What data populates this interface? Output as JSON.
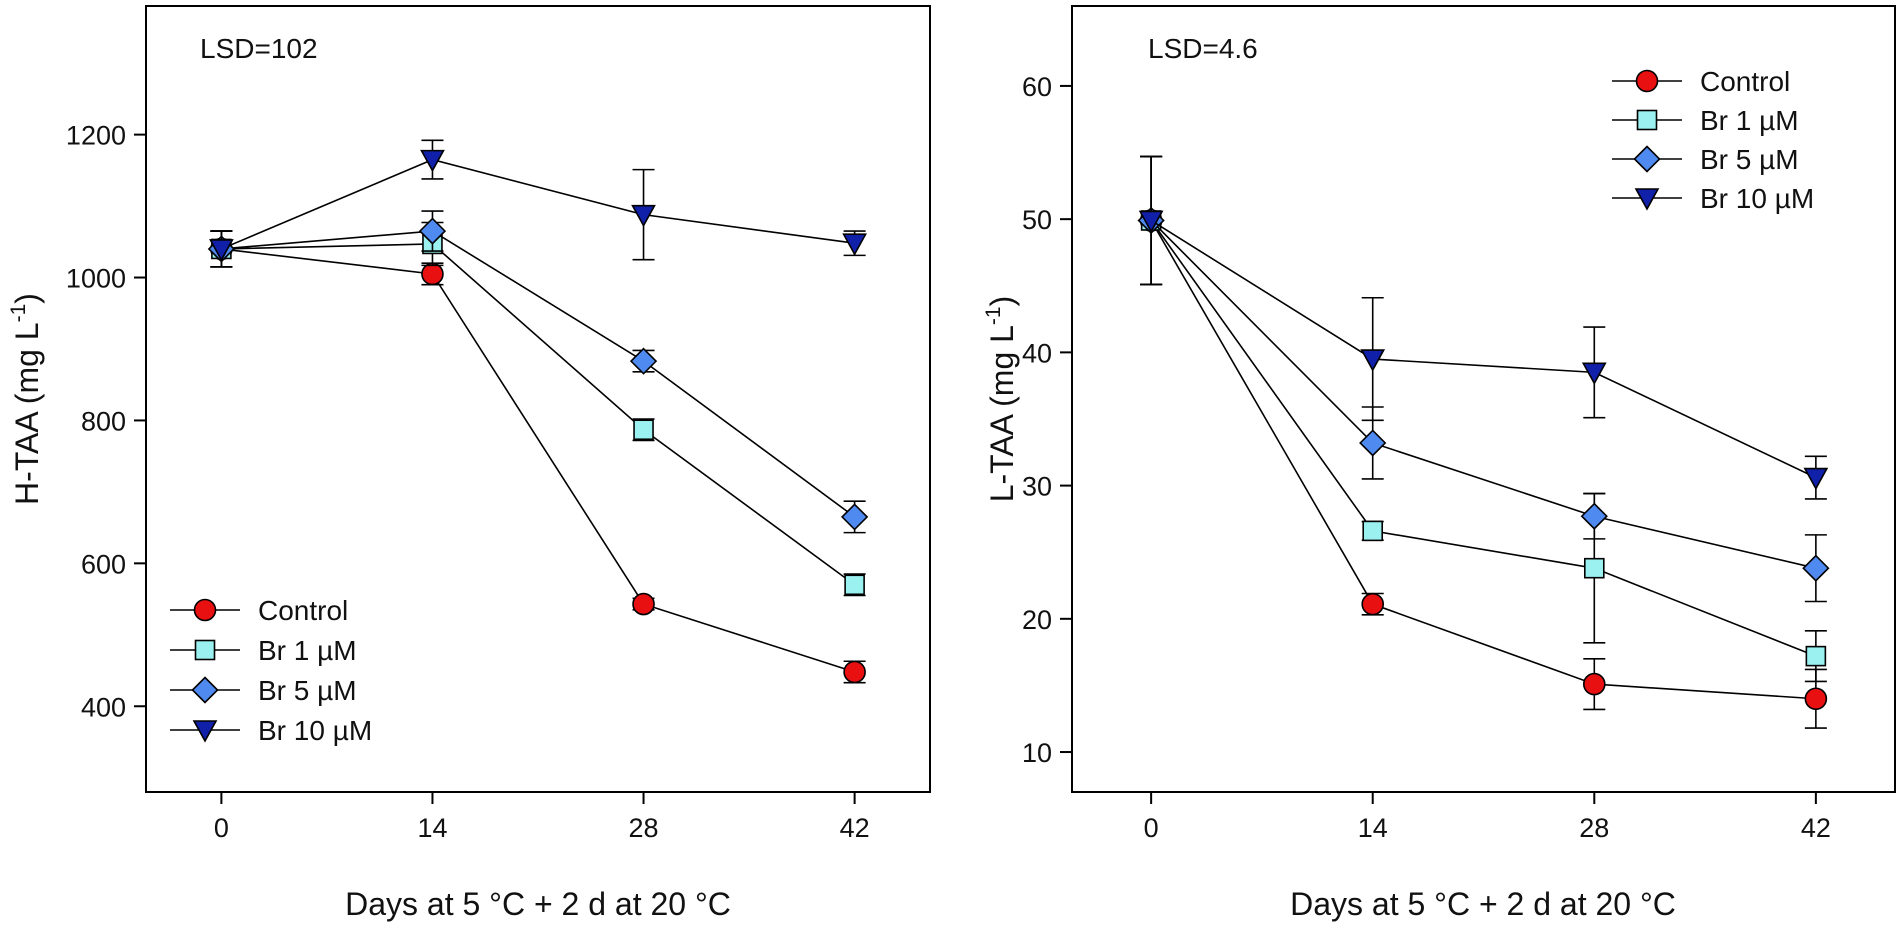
{
  "chart_data": [
    {
      "type": "line",
      "annotation": "LSD=102",
      "xlabel": "Days at 5 °C + 2 d at 20 °C",
      "ylabel": "H-TAA (mg L",
      "ylabel_exp": "-1",
      "ylabel_close": ")",
      "x": [
        0,
        14,
        28,
        42
      ],
      "xlim": [
        -5,
        47
      ],
      "ylim": [
        280,
        1380
      ],
      "xticks": [
        "0",
        "14",
        "28",
        "42"
      ],
      "yticks": [
        "400",
        "600",
        "800",
        "1000",
        "1200"
      ],
      "legend_position": "bottom-left",
      "series": [
        {
          "name": "Control",
          "marker": "circle",
          "color": "#e81010",
          "values": [
            1040,
            1005,
            543,
            448
          ],
          "errors": [
            25,
            15,
            8,
            15
          ]
        },
        {
          "name": "Br 1 µM",
          "marker": "square",
          "color": "#9bf0f0",
          "values": [
            1040,
            1047,
            787,
            570
          ],
          "errors": [
            25,
            30,
            15,
            15
          ]
        },
        {
          "name": "Br 5 µM",
          "marker": "diamond",
          "color": "#4f8af0",
          "values": [
            1040,
            1065,
            883,
            665
          ],
          "errors": [
            25,
            28,
            15,
            22
          ]
        },
        {
          "name": "Br 10 µM",
          "marker": "triangle-down",
          "color": "#1020a8",
          "values": [
            1040,
            1165,
            1088,
            1048
          ],
          "errors": [
            25,
            27,
            63,
            17
          ]
        }
      ]
    },
    {
      "type": "line",
      "annotation": "LSD=4.6",
      "xlabel": "Days at 5 °C + 2 d at 20 °C",
      "ylabel": "L-TAA (mg L",
      "ylabel_exp": "-1",
      "ylabel_close": ")",
      "x": [
        0,
        14,
        28,
        42
      ],
      "xlim": [
        -5,
        47
      ],
      "ylim": [
        7,
        66
      ],
      "xticks": [
        "0",
        "14",
        "28",
        "42"
      ],
      "yticks": [
        "10",
        "20",
        "30",
        "40",
        "50",
        "60"
      ],
      "legend_position": "top-right",
      "series": [
        {
          "name": "Control",
          "marker": "circle",
          "color": "#e81010",
          "values": [
            49.9,
            21.1,
            15.1,
            14.0
          ],
          "errors": [
            4.8,
            0.8,
            1.9,
            2.2
          ]
        },
        {
          "name": "Br 1 µM",
          "marker": "square",
          "color": "#9bf0f0",
          "values": [
            49.9,
            26.6,
            23.8,
            17.2
          ],
          "errors": [
            4.8,
            0.7,
            5.6,
            1.9
          ]
        },
        {
          "name": "Br 5 µM",
          "marker": "diamond",
          "color": "#4f8af0",
          "values": [
            49.9,
            33.2,
            27.7,
            23.8
          ],
          "errors": [
            4.8,
            2.7,
            1.7,
            2.5
          ]
        },
        {
          "name": "Br 10 µM",
          "marker": "triangle-down",
          "color": "#1020a8",
          "values": [
            49.9,
            39.5,
            38.5,
            30.6
          ],
          "errors": [
            4.8,
            4.6,
            3.4,
            1.6
          ]
        }
      ]
    }
  ]
}
